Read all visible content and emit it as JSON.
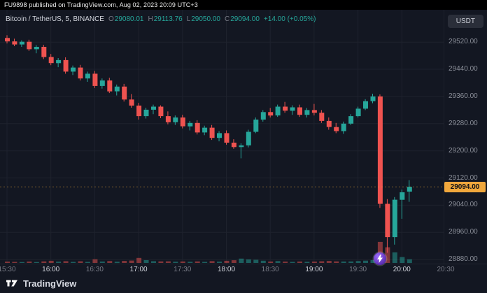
{
  "header": {
    "publish_text": "FU9898 published on TradingView.com, Aug 02, 2023 20:09 UTC+3"
  },
  "legend": {
    "symbol": "Bitcoin / TetherUS, 5, BINANCE",
    "o_label": "O",
    "o": "29080.01",
    "h_label": "H",
    "h": "29113.76",
    "l_label": "L",
    "l": "29050.00",
    "c_label": "C",
    "c": "29094.00",
    "change": "+14.00 (+0.05%)"
  },
  "toolbar": {
    "currency_button": "USDT"
  },
  "price_axis": {
    "labels": [
      "29520.00",
      "29440.00",
      "29360.00",
      "29280.00",
      "29200.00",
      "29120.00",
      "29040.00",
      "28960.00",
      "28880.00"
    ],
    "current_price": "29094.00"
  },
  "time_axis": {
    "labels": [
      {
        "text": "15:30",
        "major": false
      },
      {
        "text": "16:00",
        "major": true
      },
      {
        "text": "16:30",
        "major": false
      },
      {
        "text": "17:00",
        "major": true
      },
      {
        "text": "17:30",
        "major": false
      },
      {
        "text": "18:00",
        "major": true
      },
      {
        "text": "18:30",
        "major": false
      },
      {
        "text": "19:00",
        "major": true
      },
      {
        "text": "19:30",
        "major": false
      },
      {
        "text": "20:00",
        "major": true
      },
      {
        "text": "20:30",
        "major": false
      }
    ]
  },
  "footer": {
    "brand": "TradingView"
  },
  "colors": {
    "bg": "#131722",
    "publish_bar_bg": "#000000",
    "grid": "#1e222d",
    "up": "#26a69a",
    "down": "#ef5350",
    "vol_up": "rgba(38,166,154,0.5)",
    "vol_down": "rgba(239,83,80,0.5)",
    "price_label": "#f0a73c",
    "panel": "#2a2e39",
    "text_bright": "#d1d4dc",
    "text_dim": "#787b86"
  },
  "chart_data": {
    "type": "candlestick",
    "title": "Bitcoin / TetherUS, 5, BINANCE",
    "exchange": "BINANCE",
    "interval_minutes": 5,
    "quote_currency": "USDT",
    "ylim": [
      28868,
      29615
    ],
    "y_ticks": [
      29520,
      29440,
      29360,
      29280,
      29200,
      29120,
      29040,
      28960,
      28880
    ],
    "grid": true,
    "last_price": 29094.0,
    "columns": [
      "time",
      "open",
      "high",
      "low",
      "close",
      "volume"
    ],
    "candles": [
      [
        "15:30",
        29532,
        29540,
        29516,
        29522,
        55
      ],
      [
        "15:35",
        29522,
        29530,
        29508,
        29513,
        42
      ],
      [
        "15:40",
        29513,
        29525,
        29506,
        29521,
        38
      ],
      [
        "15:45",
        29521,
        29527,
        29494,
        29499,
        58
      ],
      [
        "15:50",
        29499,
        29511,
        29487,
        29506,
        36
      ],
      [
        "15:55",
        29506,
        29512,
        29470,
        29476,
        64
      ],
      [
        "16:00",
        29476,
        29485,
        29452,
        29458,
        88
      ],
      [
        "16:05",
        29458,
        29473,
        29446,
        29467,
        52
      ],
      [
        "16:10",
        29467,
        29475,
        29427,
        29433,
        72
      ],
      [
        "16:15",
        29433,
        29451,
        29423,
        29445,
        44
      ],
      [
        "16:20",
        29445,
        29453,
        29407,
        29413,
        68
      ],
      [
        "16:25",
        29413,
        29433,
        29403,
        29427,
        42
      ],
      [
        "16:30",
        29427,
        29435,
        29385,
        29391,
        148
      ],
      [
        "16:35",
        29391,
        29413,
        29383,
        29407,
        56
      ],
      [
        "16:40",
        29407,
        29415,
        29370,
        29375,
        78
      ],
      [
        "16:45",
        29375,
        29395,
        29363,
        29389,
        50
      ],
      [
        "16:50",
        29389,
        29397,
        29345,
        29351,
        84
      ],
      [
        "16:55",
        29351,
        29367,
        29327,
        29333,
        96
      ],
      [
        "17:00",
        29333,
        29341,
        29292,
        29302,
        205
      ],
      [
        "17:05",
        29302,
        29327,
        29295,
        29321,
        115
      ],
      [
        "17:10",
        29321,
        29336,
        29308,
        29330,
        72
      ],
      [
        "17:15",
        29330,
        29334,
        29296,
        29302,
        62
      ],
      [
        "17:20",
        29302,
        29316,
        29278,
        29284,
        66
      ],
      [
        "17:25",
        29284,
        29304,
        29276,
        29298,
        48
      ],
      [
        "17:30",
        29298,
        29306,
        29266,
        29272,
        60
      ],
      [
        "17:35",
        29272,
        29288,
        29260,
        29282,
        45
      ],
      [
        "17:40",
        29282,
        29290,
        29248,
        29254,
        64
      ],
      [
        "17:45",
        29254,
        29274,
        29246,
        29268,
        42
      ],
      [
        "17:50",
        29268,
        29276,
        29232,
        29238,
        74
      ],
      [
        "17:55",
        29238,
        29258,
        29228,
        29252,
        52
      ],
      [
        "18:00",
        29252,
        29260,
        29218,
        29224,
        90
      ],
      [
        "18:05",
        29224,
        29234,
        29206,
        29211,
        112
      ],
      [
        "18:10",
        29211,
        29222,
        29178,
        29216,
        178
      ],
      [
        "18:15",
        29216,
        29262,
        29210,
        29256,
        142
      ],
      [
        "18:20",
        29256,
        29298,
        29252,
        29292,
        128
      ],
      [
        "18:25",
        29292,
        29320,
        29286,
        29314,
        92
      ],
      [
        "18:30",
        29314,
        29326,
        29298,
        29304,
        58
      ],
      [
        "18:35",
        29304,
        29336,
        29300,
        29330,
        76
      ],
      [
        "18:40",
        29330,
        29344,
        29312,
        29318,
        54
      ],
      [
        "18:45",
        29318,
        29334,
        29306,
        29328,
        44
      ],
      [
        "18:50",
        29328,
        29336,
        29300,
        29306,
        56
      ],
      [
        "18:55",
        29306,
        29326,
        29298,
        29320,
        46
      ],
      [
        "19:00",
        29320,
        29338,
        29304,
        29312,
        54
      ],
      [
        "19:05",
        29312,
        29320,
        29282,
        29288,
        68
      ],
      [
        "19:10",
        29288,
        29298,
        29262,
        29270,
        82
      ],
      [
        "19:15",
        29270,
        29282,
        29252,
        29258,
        64
      ],
      [
        "19:20",
        29258,
        29286,
        29250,
        29280,
        56
      ],
      [
        "19:25",
        29280,
        29308,
        29276,
        29302,
        60
      ],
      [
        "19:30",
        29302,
        29330,
        29298,
        29324,
        76
      ],
      [
        "19:35",
        29324,
        29352,
        29320,
        29346,
        94
      ],
      [
        "19:40",
        29346,
        29368,
        29340,
        29360,
        118
      ],
      [
        "19:45",
        29360,
        29366,
        29032,
        29044,
        860
      ],
      [
        "19:50",
        29044,
        29058,
        28900,
        28946,
        640
      ],
      [
        "19:55",
        28946,
        29064,
        28924,
        29056,
        430
      ],
      [
        "20:00",
        29056,
        29086,
        29000,
        29078,
        240
      ],
      [
        "20:05",
        29080.01,
        29113.76,
        29050.0,
        29094.0,
        150
      ]
    ]
  }
}
